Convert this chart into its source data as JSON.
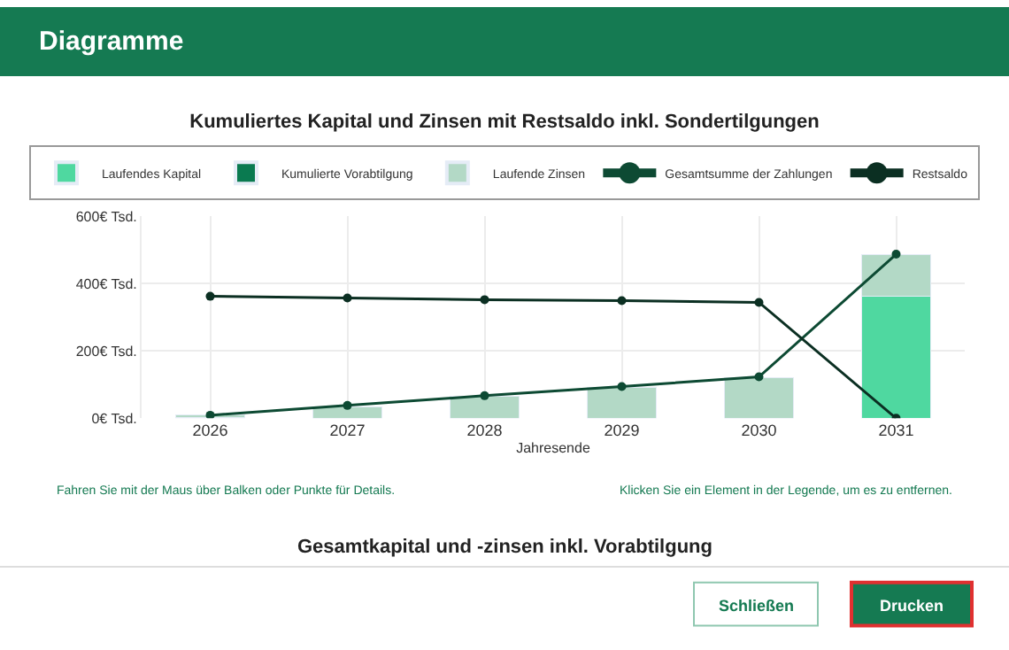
{
  "chart_data": {
    "type": "bar",
    "stacked": true,
    "title": "Kumuliertes Kapital und Zinsen mit Restsaldo inkl. Sondertilgungen",
    "xlabel": "Jahresende",
    "categories": [
      "2026",
      "2027",
      "2028",
      "2029",
      "2030",
      "2031"
    ],
    "series": [
      {
        "name": "Laufendes Kapital",
        "color": "#4fd8a0",
        "values": [
          3,
          null,
          null,
          null,
          null,
          362
        ]
      },
      {
        "name": "Kumulierte Vorabtilgung",
        "color": "#0a7a50",
        "values": [
          0,
          0,
          0,
          0,
          0,
          0
        ]
      },
      {
        "name": "Laufende Zinsen",
        "color": "#b3d9c6",
        "values": [
          6,
          35,
          64,
          91,
          120,
          125
        ]
      },
      {
        "name": "Gesamtsumme der Zahlungen",
        "type": "line",
        "marker": "circle",
        "color": "#0d4a33",
        "values": [
          9,
          38,
          67,
          94,
          123,
          487
        ]
      },
      {
        "name": "Restsaldo",
        "type": "line",
        "marker": "circle",
        "color": "#0b2f22",
        "values": [
          362,
          357,
          352,
          349,
          344,
          0
        ]
      }
    ],
    "ylim": [
      0,
      600
    ],
    "yticks": [
      {
        "value": 0,
        "label": "0€ Tsd."
      },
      {
        "value": 200,
        "label": "200€ Tsd."
      },
      {
        "value": 400,
        "label": "400€ Tsd."
      },
      {
        "value": 600,
        "label": "600€ Tsd."
      }
    ],
    "grid": true,
    "legend": "top",
    "annotations": [
      "Diagramme",
      "Fahren Sie mit der Maus über Balken oder Punkte für Details.",
      "Klicken Sie ein Element in der Legende, um es zu entfernen.",
      "Gesamtkapital und -zinsen inkl. Vorabtilgung",
      "Schließen",
      "Drucken"
    ]
  }
}
